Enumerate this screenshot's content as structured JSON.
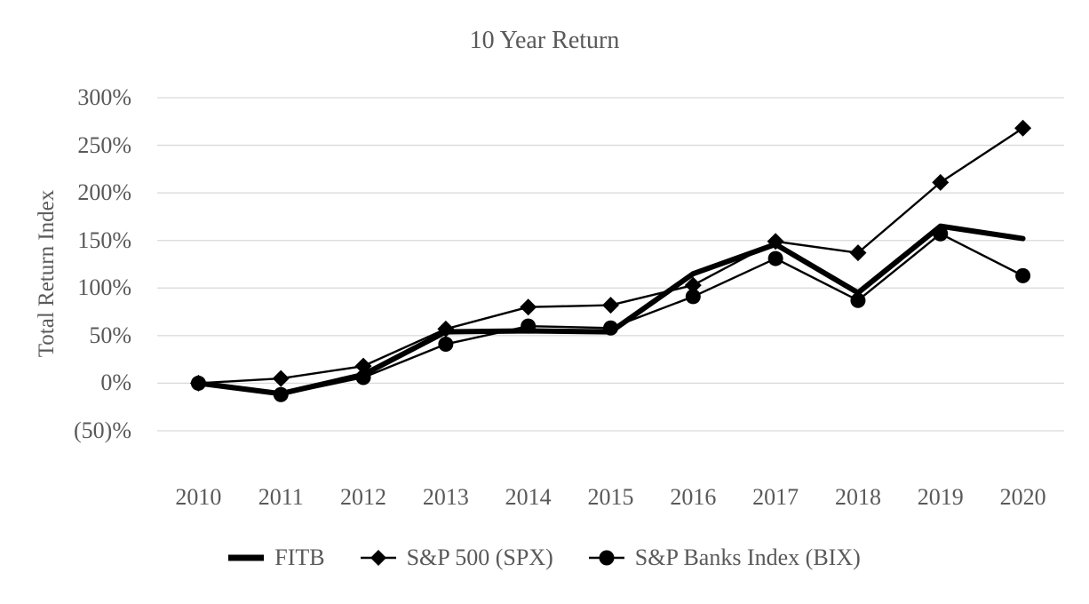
{
  "title": "10 Year Return",
  "y_axis": {
    "title": "Total Return Index",
    "ticks": [
      {
        "label": "300%",
        "value": 300
      },
      {
        "label": "250%",
        "value": 250
      },
      {
        "label": "200%",
        "value": 200
      },
      {
        "label": "150%",
        "value": 150
      },
      {
        "label": "100%",
        "value": 100
      },
      {
        "label": "50%",
        "value": 50
      },
      {
        "label": "0%",
        "value": 0
      },
      {
        "label": "(50)%",
        "value": -50
      }
    ]
  },
  "x_axis": {
    "categories": [
      "2010",
      "2011",
      "2012",
      "2013",
      "2014",
      "2015",
      "2016",
      "2017",
      "2018",
      "2019",
      "2020"
    ]
  },
  "legend": [
    {
      "label": "FITB",
      "swatch": "thick-line"
    },
    {
      "label": "S&P 500 (SPX)",
      "swatch": "line-diamond"
    },
    {
      "label": "S&P Banks Index (BIX)",
      "swatch": "line-circle"
    }
  ],
  "colors": {
    "series": "#000000",
    "text": "#595959",
    "gridline": "#d9d9d9",
    "background": "#ffffff"
  },
  "chart_data": {
    "type": "line",
    "title": "10 Year Return",
    "xlabel": "",
    "ylabel": "Total Return Index",
    "ylim": [
      -50,
      300
    ],
    "y_tick_step": 50,
    "y_unit": "percent cumulative total return",
    "grid": "horizontal",
    "legend_position": "bottom",
    "categories": [
      2010,
      2011,
      2012,
      2013,
      2014,
      2015,
      2016,
      2017,
      2018,
      2019,
      2020
    ],
    "series": [
      {
        "name": "FITB",
        "marker": "none",
        "line": "thick",
        "values": [
          0,
          -11,
          9,
          54,
          55,
          54,
          115,
          146,
          95,
          165,
          152
        ]
      },
      {
        "name": "S&P 500 (SPX)",
        "marker": "diamond",
        "line": "thin",
        "values": [
          0,
          5,
          18,
          57,
          80,
          82,
          103,
          149,
          137,
          211,
          268
        ]
      },
      {
        "name": "S&P Banks Index (BIX)",
        "marker": "circle",
        "line": "thin",
        "values": [
          0,
          -12,
          6,
          41,
          60,
          58,
          91,
          131,
          87,
          157,
          113
        ]
      }
    ]
  }
}
